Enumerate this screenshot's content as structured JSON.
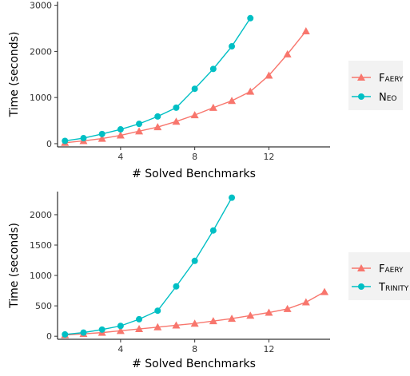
{
  "chart_data": [
    {
      "type": "line",
      "xlabel": "# Solved Benchmarks",
      "ylabel": "Time (seconds)",
      "xlim": [
        0.6,
        15.3
      ],
      "ylim": [
        -70,
        3080
      ],
      "x_ticks": [
        4,
        8,
        12
      ],
      "y_ticks": [
        0,
        1000,
        2000,
        3000
      ],
      "grid": false,
      "legend_position": "right",
      "series": [
        {
          "name": "Faery",
          "marker": "triangle",
          "color": "#F8766D",
          "x": [
            1,
            2,
            3,
            4,
            5,
            6,
            7,
            8,
            9,
            10,
            11,
            12,
            13,
            14
          ],
          "y": [
            20,
            60,
            110,
            180,
            270,
            360,
            480,
            620,
            780,
            930,
            1130,
            1480,
            1940,
            2440
          ]
        },
        {
          "name": "Neo",
          "marker": "circle",
          "color": "#00BFC4",
          "x": [
            1,
            2,
            3,
            4,
            5,
            6,
            7,
            8,
            9,
            10,
            11
          ],
          "y": [
            60,
            120,
            210,
            310,
            430,
            590,
            780,
            1190,
            1620,
            2110,
            2720
          ]
        }
      ]
    },
    {
      "type": "line",
      "xlabel": "# Solved Benchmarks",
      "ylabel": "Time (seconds)",
      "xlim": [
        0.6,
        15.3
      ],
      "ylim": [
        -50,
        2380
      ],
      "x_ticks": [
        4,
        8,
        12
      ],
      "y_ticks": [
        0,
        500,
        1000,
        1500,
        2000
      ],
      "grid": false,
      "legend_position": "right",
      "series": [
        {
          "name": "Faery",
          "marker": "triangle",
          "color": "#F8766D",
          "x": [
            1,
            2,
            3,
            4,
            5,
            6,
            7,
            8,
            9,
            10,
            11,
            12,
            13,
            14,
            15
          ],
          "y": [
            20,
            40,
            60,
            90,
            120,
            150,
            180,
            210,
            250,
            290,
            340,
            390,
            450,
            560,
            730
          ]
        },
        {
          "name": "Trinity",
          "marker": "circle",
          "color": "#00BFC4",
          "x": [
            1,
            2,
            3,
            4,
            5,
            6,
            7,
            8,
            9,
            10
          ],
          "y": [
            30,
            60,
            110,
            170,
            280,
            420,
            820,
            1240,
            1740,
            2280
          ]
        }
      ]
    }
  ]
}
